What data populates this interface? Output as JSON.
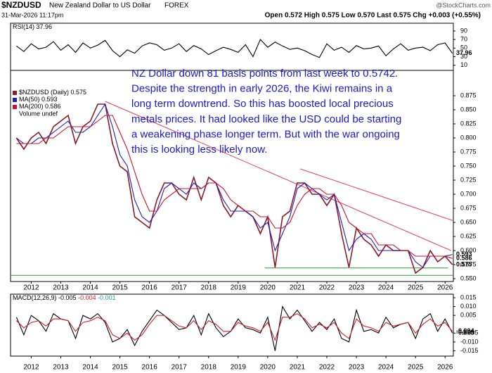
{
  "header": {
    "symbol": "$NZDUSD",
    "name": "New Zealand Dollar to US Dollar",
    "exchange": "FOREX",
    "brand": "@StockCharts.com",
    "date": "31-Mar-2026 11:17pm",
    "quote": "Open 0.572 High 0.575 Low 0.570 Last 0.575 Chg +0.003 (+0.55%)"
  },
  "chart_data": [
    {
      "type": "line",
      "label": "RSI(14)",
      "x": [
        2011.5,
        2011.75,
        2012,
        2012.25,
        2012.5,
        2012.75,
        2013,
        2013.25,
        2013.5,
        2013.75,
        2014,
        2014.25,
        2014.5,
        2014.75,
        2015,
        2015.25,
        2015.5,
        2015.75,
        2016,
        2016.25,
        2016.5,
        2016.75,
        2017,
        2017.25,
        2017.5,
        2017.75,
        2018,
        2018.25,
        2018.5,
        2018.75,
        2019,
        2019.25,
        2019.5,
        2019.75,
        2020,
        2020.25,
        2020.5,
        2020.75,
        2021,
        2021.25,
        2021.5,
        2021.75,
        2022,
        2022.25,
        2022.5,
        2022.75,
        2023,
        2023.25,
        2023.5,
        2023.75,
        2024,
        2024.25,
        2024.5,
        2024.75,
        2025,
        2025.25,
        2025.5,
        2025.75,
        2026,
        2026.25
      ],
      "xlim": [
        2011.3,
        2026.28
      ],
      "ylim": [
        -2,
        108
      ],
      "yticks": [
        10,
        30,
        50,
        70,
        90
      ],
      "series": [
        {
          "color": "#000000",
          "last_label": "37.96",
          "values": [
            55,
            42,
            60,
            48,
            52,
            65,
            45,
            58,
            40,
            62,
            50,
            57,
            68,
            44,
            30,
            46,
            38,
            55,
            62,
            58,
            45,
            50,
            60,
            42,
            56,
            48,
            35,
            44,
            52,
            47,
            40,
            58,
            30,
            70,
            52,
            64,
            55,
            47,
            50,
            44,
            35,
            28,
            60,
            45,
            52,
            40,
            56,
            48,
            50,
            55,
            32,
            48,
            60,
            45,
            50,
            52,
            44,
            58,
            62,
            37.96
          ]
        }
      ]
    },
    {
      "type": "line",
      "x": [
        2011.5,
        2011.75,
        2012,
        2012.25,
        2012.5,
        2012.75,
        2013,
        2013.25,
        2013.5,
        2013.75,
        2014,
        2014.25,
        2014.5,
        2014.75,
        2015,
        2015.25,
        2015.5,
        2015.75,
        2016,
        2016.25,
        2016.5,
        2016.75,
        2017,
        2017.25,
        2017.5,
        2017.75,
        2018,
        2018.25,
        2018.5,
        2018.75,
        2019,
        2019.25,
        2019.5,
        2019.75,
        2020,
        2020.25,
        2020.5,
        2020.75,
        2021,
        2021.25,
        2021.5,
        2021.75,
        2022,
        2022.25,
        2022.5,
        2022.75,
        2023,
        2023.25,
        2023.5,
        2023.75,
        2024,
        2024.25,
        2024.5,
        2024.75,
        2025,
        2025.25,
        2025.5,
        2025.75,
        2026,
        2026.25
      ],
      "xlim": [
        2011.3,
        2026.28
      ],
      "ylim": [
        0.545,
        0.92
      ],
      "xticks": [
        2012,
        2013,
        2014,
        2015,
        2016,
        2017,
        2018,
        2019,
        2020,
        2021,
        2022,
        2023,
        2024,
        2025,
        2026
      ],
      "yticks": [
        {
          "value": 0.55,
          "label": "0.550"
        },
        {
          "value": 0.575,
          "label": "0.575"
        },
        {
          "value": 0.6,
          "label": "0.600"
        },
        {
          "value": 0.625,
          "label": "0.625"
        },
        {
          "value": 0.65,
          "label": "0.650"
        },
        {
          "value": 0.675,
          "label": "0.675"
        },
        {
          "value": 0.7,
          "label": "0.700"
        },
        {
          "value": 0.725,
          "label": "0.725"
        },
        {
          "value": 0.75,
          "label": "0.750"
        },
        {
          "value": 0.775,
          "label": "0.775"
        },
        {
          "value": 0.8,
          "label": "0.800"
        },
        {
          "value": 0.825,
          "label": "0.825"
        },
        {
          "value": 0.85,
          "label": "0.850"
        },
        {
          "value": 0.875,
          "label": "0.875"
        }
      ],
      "series": [
        {
          "name": "$NZDUSD (Daily)",
          "color": "#8b1a2b",
          "last_label": "0.575",
          "values": [
            0.8,
            0.78,
            0.8,
            0.81,
            0.79,
            0.82,
            0.83,
            0.84,
            0.79,
            0.82,
            0.83,
            0.86,
            0.86,
            0.79,
            0.75,
            0.74,
            0.66,
            0.65,
            0.64,
            0.69,
            0.72,
            0.72,
            0.7,
            0.69,
            0.73,
            0.69,
            0.73,
            0.72,
            0.68,
            0.66,
            0.68,
            0.67,
            0.66,
            0.63,
            0.66,
            0.57,
            0.66,
            0.67,
            0.72,
            0.72,
            0.7,
            0.7,
            0.68,
            0.7,
            0.63,
            0.57,
            0.64,
            0.62,
            0.61,
            0.59,
            0.61,
            0.6,
            0.6,
            0.6,
            0.56,
            0.57,
            0.6,
            0.58,
            0.59,
            0.575
          ]
        },
        {
          "name": "MA(50)",
          "color": "#1f1fb4",
          "last_label": "0.593",
          "values": [
            0.8,
            0.79,
            0.79,
            0.8,
            0.8,
            0.81,
            0.82,
            0.83,
            0.81,
            0.81,
            0.82,
            0.84,
            0.86,
            0.82,
            0.77,
            0.75,
            0.69,
            0.66,
            0.65,
            0.67,
            0.71,
            0.72,
            0.71,
            0.7,
            0.72,
            0.71,
            0.72,
            0.72,
            0.69,
            0.67,
            0.67,
            0.67,
            0.66,
            0.64,
            0.65,
            0.6,
            0.63,
            0.66,
            0.71,
            0.72,
            0.71,
            0.7,
            0.69,
            0.7,
            0.65,
            0.6,
            0.62,
            0.63,
            0.62,
            0.6,
            0.6,
            0.6,
            0.6,
            0.6,
            0.58,
            0.57,
            0.59,
            0.59,
            0.59,
            0.593
          ]
        },
        {
          "name": "MA(200)",
          "color": "#c8102e",
          "last_label": "0.586",
          "values": [
            0.79,
            0.79,
            0.79,
            0.79,
            0.8,
            0.8,
            0.81,
            0.82,
            0.82,
            0.82,
            0.82,
            0.83,
            0.84,
            0.84,
            0.81,
            0.78,
            0.74,
            0.7,
            0.67,
            0.67,
            0.69,
            0.7,
            0.71,
            0.71,
            0.71,
            0.71,
            0.72,
            0.72,
            0.71,
            0.69,
            0.68,
            0.67,
            0.67,
            0.66,
            0.66,
            0.64,
            0.64,
            0.65,
            0.68,
            0.7,
            0.71,
            0.71,
            0.7,
            0.7,
            0.68,
            0.65,
            0.64,
            0.63,
            0.63,
            0.61,
            0.61,
            0.61,
            0.6,
            0.6,
            0.59,
            0.59,
            0.59,
            0.59,
            0.59,
            0.586
          ]
        }
      ],
      "legend_extra": "Volume undef",
      "trendlines": [
        {
          "color": "#e0405a",
          "x": [
            2014.5,
            2026.2
          ],
          "values": [
            0.865,
            0.6
          ]
        },
        {
          "color": "#e0405a",
          "x": [
            2021.1,
            2026.28
          ],
          "values": [
            0.745,
            0.653
          ]
        },
        {
          "color": "#2a9a2a",
          "x": [
            2011.3,
            2026.28
          ],
          "values": [
            0.556,
            0.556
          ]
        },
        {
          "color": "#2a9a2a",
          "x": [
            2019.9,
            2026.1
          ],
          "values": [
            0.569,
            0.569
          ]
        }
      ],
      "annotation": [
        "NZ Dollar down 81 basis points from last week to 0.5742.",
        "Despite the strength in early 2026, the Kiwi remains in a",
        "long term downtrend. So this has boosted local precious",
        "metals prices. It had looked like the USD could be starting",
        "a weakening phase longer term. But with the war ongoing",
        "this is looking less likely now."
      ]
    },
    {
      "type": "line",
      "label": "MACD(12,26,9)",
      "legend_tail": "-0.001",
      "x": [
        2011.5,
        2011.75,
        2012,
        2012.25,
        2012.5,
        2012.75,
        2013,
        2013.25,
        2013.5,
        2013.75,
        2014,
        2014.25,
        2014.5,
        2014.75,
        2015,
        2015.25,
        2015.5,
        2015.75,
        2016,
        2016.25,
        2016.5,
        2016.75,
        2017,
        2017.25,
        2017.5,
        2017.75,
        2018,
        2018.25,
        2018.5,
        2018.75,
        2019,
        2019.25,
        2019.5,
        2019.75,
        2020,
        2020.25,
        2020.5,
        2020.75,
        2021,
        2021.25,
        2021.5,
        2021.75,
        2022,
        2022.25,
        2022.5,
        2022.75,
        2023,
        2023.25,
        2023.5,
        2023.75,
        2024,
        2024.25,
        2024.5,
        2024.75,
        2025,
        2025.25,
        2025.5,
        2025.75,
        2026,
        2026.25
      ],
      "xlim": [
        2011.3,
        2026.28
      ],
      "ylim": [
        -0.018,
        0.017
      ],
      "xticks": [
        2012,
        2013,
        2014,
        2015,
        2016,
        2017,
        2018,
        2019,
        2020,
        2021,
        2022,
        2023,
        2024,
        2025,
        2026
      ],
      "yticks": [
        {
          "value": -0.015,
          "label": "-0.015"
        },
        {
          "value": -0.01,
          "label": "-0.010"
        },
        {
          "value": -0.005,
          "label": "-0.005"
        },
        {
          "value": 0.005,
          "label": "0.005"
        },
        {
          "value": 0.01,
          "label": "0.010"
        },
        {
          "value": 0.015,
          "label": "0.015"
        }
      ],
      "series": [
        {
          "color": "#000000",
          "last_label": "-0.005",
          "values": [
            0.004,
            -0.006,
            0.005,
            0.002,
            -0.004,
            0.006,
            0.003,
            0.002,
            -0.008,
            0.005,
            0.003,
            0.006,
            0.001,
            -0.01,
            -0.008,
            -0.003,
            -0.012,
            -0.004,
            0.002,
            0.008,
            0.005,
            0.001,
            -0.003,
            -0.002,
            0.005,
            -0.006,
            0.006,
            -0.002,
            -0.007,
            -0.004,
            0.003,
            -0.002,
            -0.003,
            -0.005,
            0.004,
            -0.015,
            0.01,
            0.003,
            0.008,
            0.002,
            -0.004,
            0.001,
            -0.003,
            0.003,
            -0.008,
            -0.01,
            0.008,
            -0.004,
            -0.003,
            -0.005,
            0.004,
            -0.002,
            0,
            0.001,
            -0.008,
            0.003,
            0.006,
            -0.004,
            0.003,
            -0.005
          ]
        },
        {
          "color": "#d0202a",
          "last_label": "-0.004",
          "values": [
            0.002,
            -0.002,
            0.001,
            0.002,
            -0.001,
            0.003,
            0.003,
            0.002,
            -0.004,
            0.001,
            0.002,
            0.004,
            0.002,
            -0.006,
            -0.008,
            -0.005,
            -0.009,
            -0.006,
            0,
            0.005,
            0.005,
            0.002,
            -0.001,
            -0.002,
            0.002,
            -0.003,
            0.002,
            0,
            -0.004,
            -0.004,
            0.001,
            -0.001,
            -0.002,
            -0.004,
            0.001,
            -0.009,
            0.004,
            0.004,
            0.006,
            0.003,
            -0.002,
            0,
            -0.002,
            0.001,
            -0.005,
            -0.008,
            0.003,
            -0.001,
            -0.002,
            -0.004,
            0.001,
            -0.001,
            0,
            0.001,
            -0.005,
            0,
            0.003,
            -0.001,
            0.001,
            -0.004
          ]
        }
      ]
    }
  ]
}
